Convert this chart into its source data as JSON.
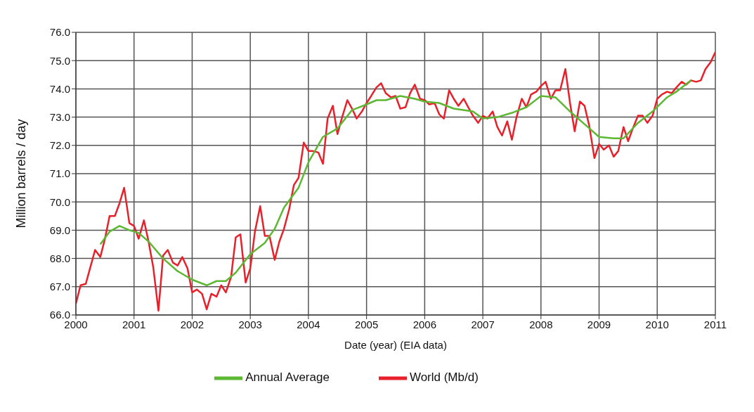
{
  "chart_data": {
    "type": "line",
    "xlabel": "Date (year) (EIA data)",
    "ylabel": "Million barrels / day",
    "xlim": [
      2000,
      2011
    ],
    "xticks": [
      2000,
      2001,
      2002,
      2003,
      2004,
      2005,
      2006,
      2007,
      2008,
      2009,
      2010,
      2011
    ],
    "ylim": [
      66,
      76
    ],
    "yticks": [
      {
        "value": 66,
        "label": "66.0"
      },
      {
        "value": 67,
        "label": "67.0"
      },
      {
        "value": 68,
        "label": "68.0"
      },
      {
        "value": 69,
        "label": "69.0"
      },
      {
        "value": 70,
        "label": "70.0"
      },
      {
        "value": 71,
        "label": "71.0"
      },
      {
        "value": 72,
        "label": "72.0"
      },
      {
        "value": 73,
        "label": "73.0"
      },
      {
        "value": 74,
        "label": "74.0"
      },
      {
        "value": 75,
        "label": "75.0"
      },
      {
        "value": 76,
        "label": "76.0"
      }
    ],
    "grid": true,
    "legend": "bottom",
    "marker": "none",
    "line_style": "solid",
    "series": [
      {
        "name": "World (Mb/d)",
        "color": "#e8202a",
        "x": [
          2000.0,
          2000.08,
          2000.17,
          2000.25,
          2000.33,
          2000.42,
          2000.5,
          2000.58,
          2000.67,
          2000.75,
          2000.83,
          2000.92,
          2001.0,
          2001.08,
          2001.17,
          2001.25,
          2001.33,
          2001.42,
          2001.5,
          2001.58,
          2001.67,
          2001.75,
          2001.83,
          2001.92,
          2002.0,
          2002.08,
          2002.17,
          2002.25,
          2002.33,
          2002.42,
          2002.5,
          2002.58,
          2002.67,
          2002.75,
          2002.83,
          2002.92,
          2003.0,
          2003.08,
          2003.17,
          2003.25,
          2003.33,
          2003.42,
          2003.5,
          2003.58,
          2003.67,
          2003.75,
          2003.83,
          2003.92,
          2004.0,
          2004.08,
          2004.17,
          2004.25,
          2004.33,
          2004.42,
          2004.5,
          2004.58,
          2004.67,
          2004.75,
          2004.83,
          2004.92,
          2005.0,
          2005.08,
          2005.17,
          2005.25,
          2005.33,
          2005.42,
          2005.5,
          2005.58,
          2005.67,
          2005.75,
          2005.83,
          2005.92,
          2006.0,
          2006.08,
          2006.17,
          2006.25,
          2006.33,
          2006.42,
          2006.5,
          2006.58,
          2006.67,
          2006.75,
          2006.83,
          2006.92,
          2007.0,
          2007.08,
          2007.17,
          2007.25,
          2007.33,
          2007.42,
          2007.5,
          2007.58,
          2007.67,
          2007.75,
          2007.83,
          2007.92,
          2008.0,
          2008.08,
          2008.17,
          2008.25,
          2008.33,
          2008.42,
          2008.5,
          2008.58,
          2008.67,
          2008.75,
          2008.83,
          2008.92,
          2009.0,
          2009.08,
          2009.17,
          2009.25,
          2009.33,
          2009.42,
          2009.5,
          2009.58,
          2009.67,
          2009.75,
          2009.83,
          2009.92,
          2010.0,
          2010.08,
          2010.17,
          2010.25,
          2010.33,
          2010.42,
          2010.5,
          2010.58,
          2010.67,
          2010.75,
          2010.83,
          2010.92,
          2011.0
        ],
        "values": [
          66.4,
          67.05,
          67.1,
          67.7,
          68.3,
          68.05,
          68.7,
          69.5,
          69.5,
          69.95,
          70.5,
          69.25,
          69.15,
          68.7,
          69.35,
          68.6,
          67.7,
          66.15,
          68.1,
          68.3,
          67.85,
          67.75,
          68.05,
          67.65,
          66.8,
          66.9,
          66.75,
          66.2,
          66.75,
          66.65,
          67.05,
          66.8,
          67.35,
          68.75,
          68.85,
          67.15,
          67.65,
          68.95,
          69.85,
          68.8,
          68.8,
          67.95,
          68.6,
          69.05,
          69.75,
          70.6,
          70.85,
          72.1,
          71.8,
          71.8,
          71.75,
          71.35,
          72.95,
          73.4,
          72.4,
          73.0,
          73.6,
          73.3,
          72.95,
          73.2,
          73.5,
          73.75,
          74.05,
          74.2,
          73.85,
          73.7,
          73.75,
          73.3,
          73.35,
          73.85,
          74.15,
          73.65,
          73.6,
          73.45,
          73.5,
          73.1,
          72.95,
          73.95,
          73.65,
          73.4,
          73.65,
          73.35,
          73.05,
          72.8,
          73.05,
          72.95,
          73.2,
          72.65,
          72.35,
          72.85,
          72.2,
          73.0,
          73.65,
          73.35,
          73.8,
          73.9,
          74.1,
          74.25,
          73.65,
          73.95,
          73.95,
          74.7,
          73.5,
          72.5,
          73.55,
          73.4,
          72.7,
          71.55,
          72.05,
          71.85,
          72.0,
          71.6,
          71.8,
          72.65,
          72.15,
          72.6,
          73.05,
          73.05,
          72.8,
          73.05,
          73.65,
          73.8,
          73.9,
          73.85,
          74.05,
          74.25,
          74.15,
          74.3,
          74.25,
          74.3,
          74.7,
          74.95,
          75.3
        ]
      },
      {
        "name": "Annual Average",
        "color": "#5cb833",
        "x": [
          2000.42,
          2000.58,
          2000.75,
          2000.92,
          2001.08,
          2001.25,
          2001.5,
          2001.75,
          2002.0,
          2002.25,
          2002.42,
          2002.58,
          2002.75,
          2003.0,
          2003.25,
          2003.42,
          2003.58,
          2003.83,
          2004.0,
          2004.25,
          2004.5,
          2004.75,
          2005.0,
          2005.17,
          2005.33,
          2005.58,
          2005.83,
          2006.0,
          2006.25,
          2006.5,
          2006.83,
          2007.0,
          2007.25,
          2007.5,
          2007.75,
          2008.0,
          2008.25,
          2008.5,
          2008.75,
          2009.0,
          2009.25,
          2009.42,
          2009.67,
          2009.92,
          2010.17,
          2010.33,
          2010.58
        ],
        "values": [
          68.5,
          68.95,
          69.15,
          69.0,
          68.9,
          68.6,
          68.0,
          67.55,
          67.25,
          67.05,
          67.2,
          67.2,
          67.5,
          68.15,
          68.55,
          69.05,
          69.8,
          70.5,
          71.4,
          72.3,
          72.6,
          73.25,
          73.45,
          73.6,
          73.6,
          73.75,
          73.65,
          73.55,
          73.5,
          73.3,
          73.2,
          72.95,
          73.0,
          73.15,
          73.35,
          73.75,
          73.7,
          73.2,
          72.75,
          72.3,
          72.25,
          72.25,
          72.8,
          73.2,
          73.7,
          73.9,
          74.3
        ]
      }
    ]
  }
}
